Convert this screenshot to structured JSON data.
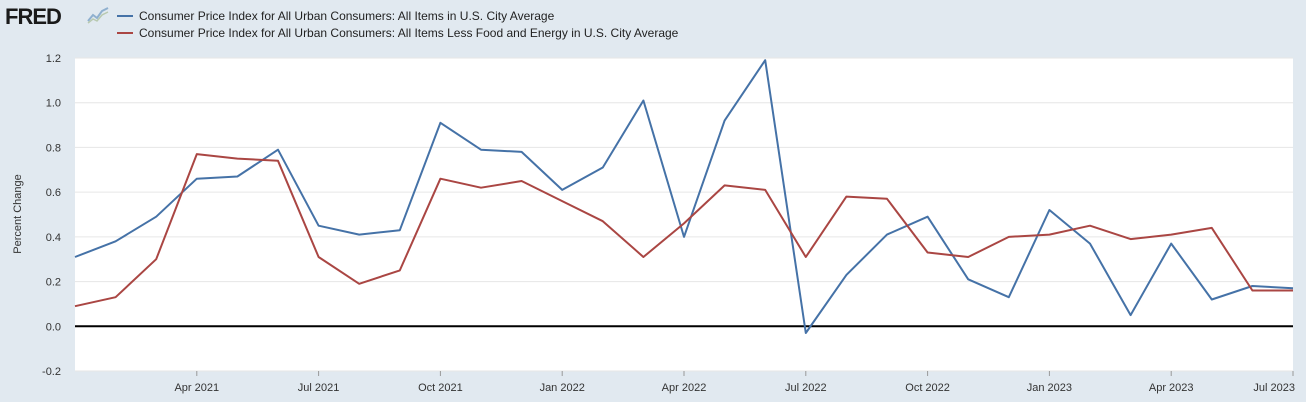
{
  "header": {
    "logo_text": "FRED",
    "logo_icon": "fred-trend-icon"
  },
  "chart_data": {
    "type": "line",
    "title": "",
    "xlabel": "",
    "ylabel": "Percent Change",
    "ylim": [
      -0.2,
      1.2
    ],
    "yticks": [
      -0.2,
      0.0,
      0.2,
      0.4,
      0.6,
      0.8,
      1.0,
      1.2
    ],
    "ytick_labels": [
      "-0.2",
      "0.0",
      "0.2",
      "0.4",
      "0.6",
      "0.8",
      "1.0",
      "1.2"
    ],
    "xticks": [
      "Apr 2021",
      "Jul 2021",
      "Oct 2021",
      "Jan 2022",
      "Apr 2022",
      "Jul 2022",
      "Oct 2022",
      "Jan 2023",
      "Apr 2023",
      "Jul 2023"
    ],
    "x": [
      "2021-01",
      "2021-02",
      "2021-03",
      "2021-04",
      "2021-05",
      "2021-06",
      "2021-07",
      "2021-08",
      "2021-09",
      "2021-10",
      "2021-11",
      "2021-12",
      "2022-01",
      "2022-02",
      "2022-03",
      "2022-04",
      "2022-05",
      "2022-06",
      "2022-07",
      "2022-08",
      "2022-09",
      "2022-10",
      "2022-11",
      "2022-12",
      "2023-01",
      "2023-02",
      "2023-03",
      "2023-04",
      "2023-05",
      "2023-06",
      "2023-07"
    ],
    "grid": true,
    "zero_line": true,
    "legend_position": "top-left",
    "series": [
      {
        "name": "Consumer Price Index for All Urban Consumers: All Items in U.S. City Average",
        "color": "#4572a7",
        "values": [
          0.31,
          0.38,
          0.49,
          0.66,
          0.67,
          0.79,
          0.45,
          0.41,
          0.43,
          0.91,
          0.79,
          0.78,
          0.61,
          0.71,
          1.01,
          0.4,
          0.92,
          1.19,
          -0.03,
          0.23,
          0.41,
          0.49,
          0.21,
          0.13,
          0.52,
          0.37,
          0.05,
          0.37,
          0.12,
          0.18,
          0.17
        ]
      },
      {
        "name": "Consumer Price Index for All Urban Consumers: All Items Less Food and Energy in U.S. City Average",
        "color": "#aa4643",
        "values": [
          0.09,
          0.13,
          0.3,
          0.77,
          0.75,
          0.74,
          0.31,
          0.19,
          0.25,
          0.66,
          0.62,
          0.65,
          0.56,
          0.47,
          0.31,
          0.46,
          0.63,
          0.61,
          0.31,
          0.58,
          0.57,
          0.33,
          0.31,
          0.4,
          0.41,
          0.45,
          0.39,
          0.41,
          0.44,
          0.16,
          0.16
        ]
      }
    ]
  }
}
